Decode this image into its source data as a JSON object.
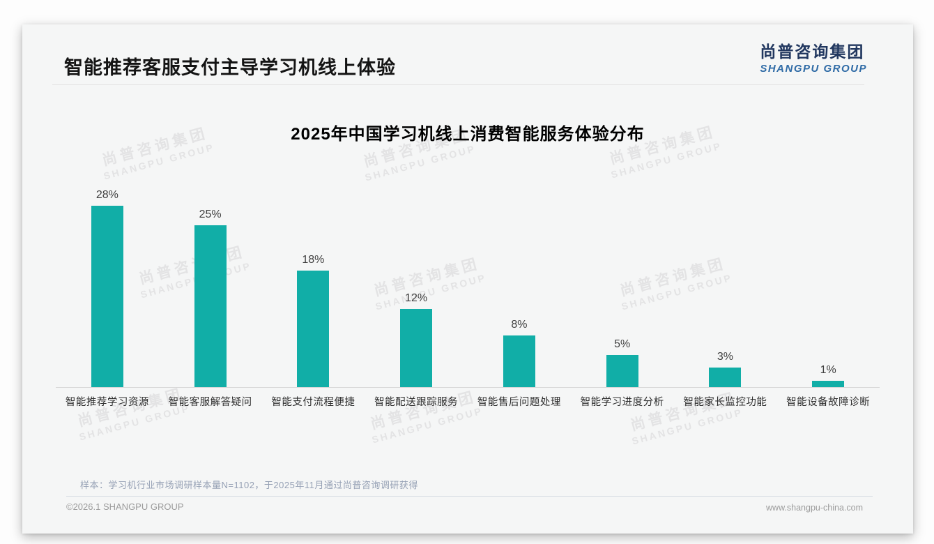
{
  "page": {
    "title": "智能推荐客服支付主导学习机线上体验",
    "logo": {
      "cn": "尚普咨询集团",
      "en": "SHANGPU GROUP"
    },
    "footnote": "样本：学习机行业市场调研样本量N=1102，于2025年11月通过尚普咨询调研获得",
    "footer": {
      "left": "©2026.1 SHANGPU GROUP",
      "right": "www.shangpu-china.com"
    },
    "watermark": {
      "cn": "尚普咨询集团",
      "en": "SHANGPU GROUP"
    }
  },
  "chart_data": {
    "type": "bar",
    "title": "2025年中国学习机线上消费智能服务体验分布",
    "categories": [
      "智能推荐学习资源",
      "智能客服解答疑问",
      "智能支付流程便捷",
      "智能配送跟踪服务",
      "智能售后问题处理",
      "智能学习进度分析",
      "智能家长监控功能",
      "智能设备故障诊断"
    ],
    "values": [
      28,
      25,
      18,
      12,
      8,
      5,
      3,
      1
    ],
    "value_labels": [
      "28%",
      "25%",
      "18%",
      "12%",
      "8%",
      "5%",
      "3%",
      "1%"
    ],
    "bar_color": "#11aea7",
    "xlabel": "",
    "ylabel": "",
    "ylim": [
      0,
      30
    ],
    "grid": false,
    "legend": "none"
  }
}
